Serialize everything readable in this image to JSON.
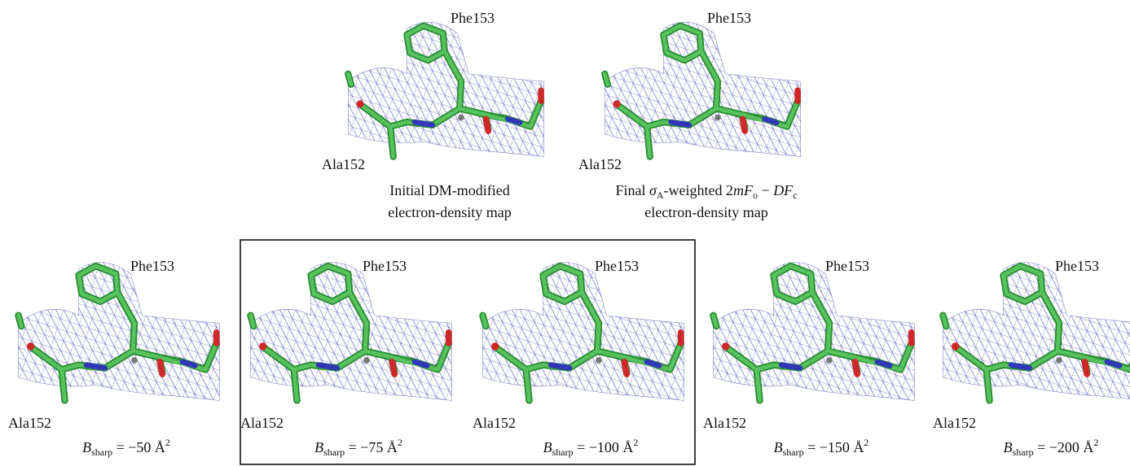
{
  "top_panels": [
    {
      "residue_top": "Phe153",
      "residue_bottom": "Ala152",
      "caption_line_1": [
        "Initial DM-modified"
      ],
      "caption_line_2": [
        "electron-density map"
      ]
    },
    {
      "residue_top": "Phe153",
      "residue_bottom": "Ala152",
      "caption_line_1": [
        "Final ",
        "σ",
        "A",
        "-weighted 2",
        "mF",
        "o",
        " − ",
        "DF",
        "c"
      ],
      "caption_line_2": [
        "electron-density map"
      ]
    }
  ],
  "bottom_panels": [
    {
      "residue_top": "Phe153",
      "residue_bottom": "Ala152",
      "b_sharp": {
        "symbol": "B",
        "subscript": "sharp",
        "value": " = −50 Å",
        "superscript": "2"
      }
    },
    {
      "residue_top": "Phe153",
      "residue_bottom": "Ala152",
      "b_sharp": {
        "symbol": "B",
        "subscript": "sharp",
        "value": " = −75 Å",
        "superscript": "2"
      }
    },
    {
      "residue_top": "Phe153",
      "residue_bottom": "Ala152",
      "b_sharp": {
        "symbol": "B",
        "subscript": "sharp",
        "value": " = −100 Å",
        "superscript": "2"
      }
    },
    {
      "residue_top": "Phe153",
      "residue_bottom": "Ala152",
      "b_sharp": {
        "symbol": "B",
        "subscript": "sharp",
        "value": " = −150 Å",
        "superscript": "2"
      }
    },
    {
      "residue_top": "Phe153",
      "residue_bottom": "Ala152",
      "b_sharp": {
        "symbol": "B",
        "subscript": "sharp",
        "value": " = −200 Å",
        "superscript": "2"
      }
    }
  ]
}
